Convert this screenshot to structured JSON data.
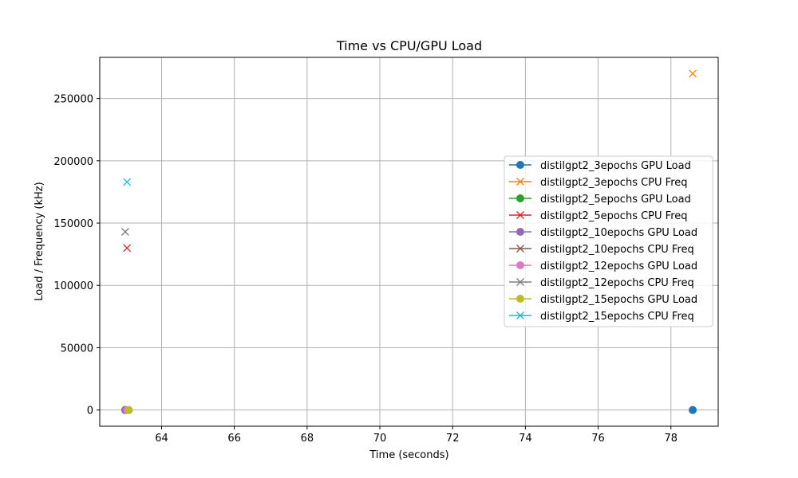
{
  "chart_data": {
    "type": "line",
    "title": "Time vs CPU/GPU Load",
    "xlabel": "Time (seconds)",
    "ylabel": "Load / Frequency (kHz)",
    "xlim": [
      62.3,
      79.3
    ],
    "ylim": [
      -13000,
      283000
    ],
    "xticks": [
      64,
      66,
      68,
      70,
      72,
      74,
      76,
      78
    ],
    "yticks": [
      0,
      50000,
      100000,
      150000,
      200000,
      250000
    ],
    "grid": true,
    "legend_position": "center-right",
    "series": [
      {
        "name": "distilgpt2_3epochs GPU Load",
        "color": "#1f77b4",
        "marker": "o",
        "points": [
          [
            78.6,
            0
          ]
        ]
      },
      {
        "name": "distilgpt2_3epochs CPU Freq",
        "color": "#ff7f0e",
        "marker": "x",
        "points": [
          [
            78.6,
            270000
          ]
        ]
      },
      {
        "name": "distilgpt2_5epochs GPU Load",
        "color": "#2ca02c",
        "marker": "o",
        "points": [
          [
            63.0,
            0
          ]
        ]
      },
      {
        "name": "distilgpt2_5epochs CPU Freq",
        "color": "#d62728",
        "marker": "x",
        "points": [
          [
            63.05,
            130000
          ]
        ]
      },
      {
        "name": "distilgpt2_10epochs GPU Load",
        "color": "#9467bd",
        "marker": "o",
        "points": [
          [
            63.0,
            0
          ]
        ]
      },
      {
        "name": "distilgpt2_10epochs CPU Freq",
        "color": "#8c564b",
        "marker": "x",
        "points": [
          [
            63.05,
            0
          ]
        ]
      },
      {
        "name": "distilgpt2_12epochs GPU Load",
        "color": "#e377c2",
        "marker": "o",
        "points": [
          [
            63.05,
            0
          ]
        ]
      },
      {
        "name": "distilgpt2_12epochs CPU Freq",
        "color": "#7f7f7f",
        "marker": "x",
        "points": [
          [
            63.0,
            143000
          ]
        ]
      },
      {
        "name": "distilgpt2_15epochs GPU Load",
        "color": "#bcbd22",
        "marker": "o",
        "points": [
          [
            63.1,
            0
          ]
        ]
      },
      {
        "name": "distilgpt2_15epochs CPU Freq",
        "color": "#17becf",
        "marker": "x",
        "points": [
          [
            63.05,
            183000
          ]
        ]
      }
    ]
  }
}
